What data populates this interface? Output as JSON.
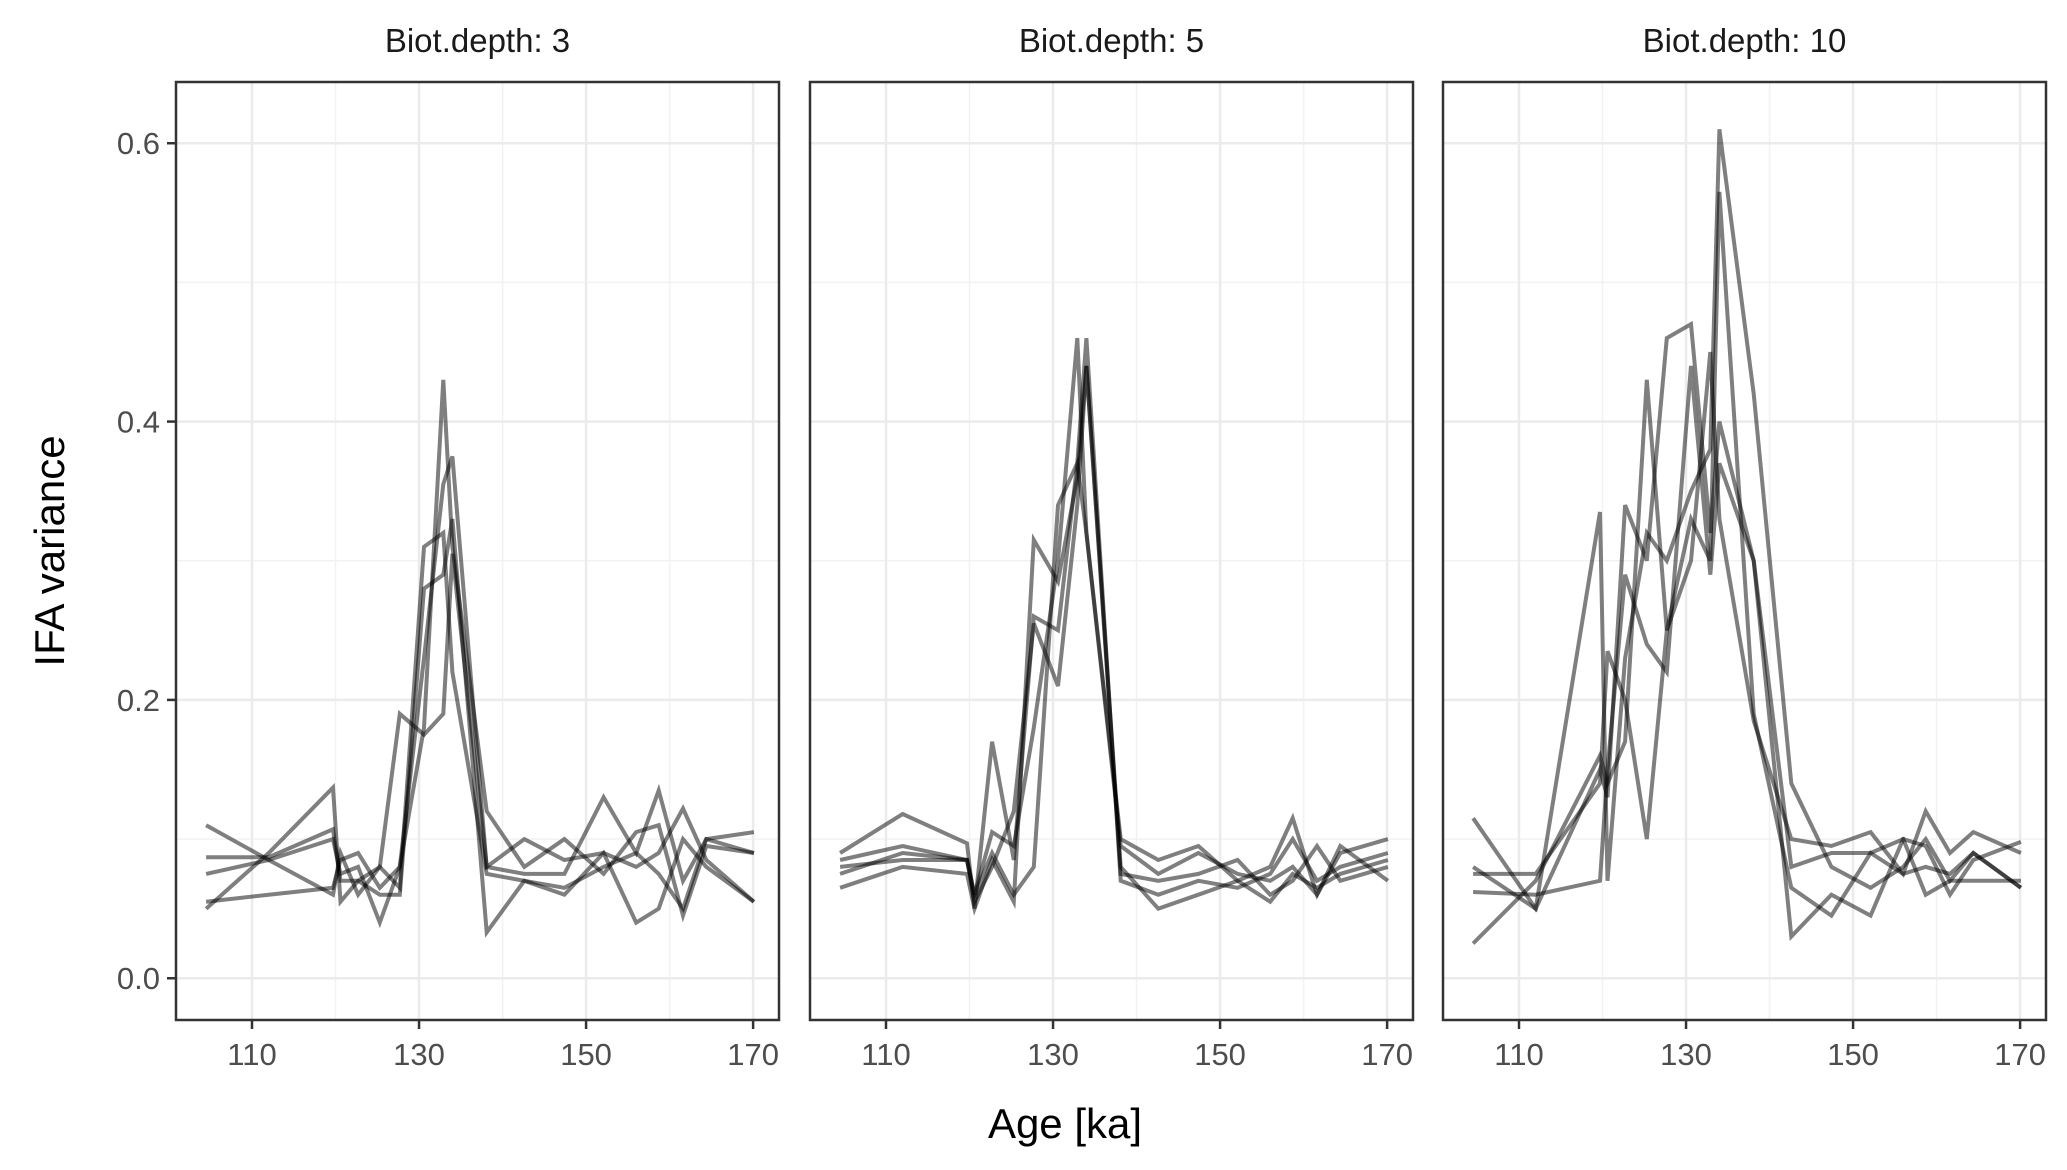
{
  "chart_data": {
    "type": "line",
    "layout": "facets-1x3",
    "xlabel": "Age [ka]",
    "ylabel": "IFA variance",
    "xlim": [
      100.9,
      173.1
    ],
    "ylim": [
      -0.03,
      0.644
    ],
    "x_ticks": [
      110,
      130,
      150,
      170
    ],
    "x_tick_labels": [
      "110",
      "130",
      "150",
      "170"
    ],
    "y_ticks": [
      0.0,
      0.2,
      0.4,
      0.6
    ],
    "y_tick_labels": [
      "0.0",
      "0.2",
      "0.4",
      "0.6"
    ],
    "grid": true,
    "line_color": "#000000",
    "line_opacity": 0.5,
    "x": [
      104.5,
      112,
      119.7,
      120.6,
      122.7,
      125.3,
      127.7,
      130.6,
      132.9,
      134,
      138.1,
      142.6,
      147.4,
      152.1,
      156,
      158.7,
      161.6,
      164.4,
      170.1
    ],
    "panels": [
      {
        "title": "Biot.depth: 3",
        "series": [
          {
            "values": [
              0.11,
              0.085,
              0.06,
              0.09,
              0.06,
              0.08,
              0.065,
              0.31,
              0.32,
              0.22,
              0.075,
              0.07,
              0.065,
              0.08,
              0.09,
              0.075,
              0.05,
              0.1,
              0.09
            ]
          },
          {
            "values": [
              0.055,
              0.06,
              0.065,
              0.085,
              0.09,
              0.065,
              0.08,
              0.18,
              0.43,
              0.31,
              0.12,
              0.08,
              0.1,
              0.075,
              0.105,
              0.11,
              0.045,
              0.095,
              0.09
            ]
          },
          {
            "values": [
              0.05,
              0.09,
              0.137,
              0.055,
              0.07,
              0.08,
              0.19,
              0.175,
              0.19,
              0.305,
              0.08,
              0.1,
              0.085,
              0.09,
              0.08,
              0.09,
              0.122,
              0.085,
              0.055
            ]
          },
          {
            "values": [
              0.075,
              0.085,
              0.1,
              0.075,
              0.08,
              0.04,
              0.08,
              0.23,
              0.355,
              0.375,
              0.08,
              0.075,
              0.075,
              0.13,
              0.09,
              0.135,
              0.07,
              0.1,
              0.105
            ]
          },
          {
            "values": [
              0.087,
              0.087,
              0.107,
              0.07,
              0.07,
              0.06,
              0.06,
              0.28,
              0.29,
              0.33,
              0.033,
              0.07,
              0.06,
              0.09,
              0.04,
              0.05,
              0.1,
              0.08,
              0.055
            ]
          }
        ]
      },
      {
        "title": "Biot.depth: 5",
        "series": [
          {
            "values": [
              0.085,
              0.095,
              0.085,
              0.06,
              0.105,
              0.095,
              0.18,
              0.3,
              0.46,
              0.32,
              0.1,
              0.085,
              0.095,
              0.07,
              0.08,
              0.115,
              0.06,
              0.09,
              0.1
            ]
          },
          {
            "values": [
              0.09,
              0.118,
              0.097,
              0.05,
              0.17,
              0.085,
              0.26,
              0.25,
              0.37,
              0.46,
              0.07,
              0.06,
              0.07,
              0.065,
              0.075,
              0.1,
              0.07,
              0.08,
              0.09
            ]
          },
          {
            "values": [
              0.075,
              0.09,
              0.085,
              0.055,
              0.08,
              0.12,
              0.255,
              0.21,
              0.34,
              0.44,
              0.075,
              0.07,
              0.075,
              0.085,
              0.06,
              0.07,
              0.095,
              0.07,
              0.08
            ]
          },
          {
            "values": [
              0.065,
              0.08,
              0.075,
              0.05,
              0.085,
              0.055,
              0.315,
              0.285,
              0.36,
              0.44,
              0.08,
              0.05,
              0.06,
              0.07,
              0.055,
              0.075,
              0.065,
              0.075,
              0.085
            ]
          },
          {
            "values": [
              0.08,
              0.085,
              0.085,
              0.06,
              0.09,
              0.06,
              0.08,
              0.34,
              0.37,
              0.32,
              0.095,
              0.075,
              0.09,
              0.075,
              0.07,
              0.08,
              0.06,
              0.095,
              0.07
            ]
          }
        ]
      },
      {
        "title": "Biot.depth: 10",
        "series": [
          {
            "values": [
              0.08,
              0.05,
              0.335,
              0.07,
              0.23,
              0.32,
              0.3,
              0.35,
              0.38,
              0.61,
              0.42,
              0.14,
              0.08,
              0.065,
              0.08,
              0.1,
              0.07,
              0.09,
              0.065
            ]
          },
          {
            "values": [
              0.075,
              0.075,
              0.14,
              0.235,
              0.2,
              0.1,
              0.25,
              0.33,
              0.3,
              0.565,
              0.19,
              0.065,
              0.045,
              0.09,
              0.075,
              0.08,
              0.075,
              0.09,
              0.065
            ]
          },
          {
            "values": [
              0.115,
              0.05,
              0.15,
              0.13,
              0.34,
              0.3,
              0.46,
              0.47,
              0.32,
              0.4,
              0.3,
              0.08,
              0.09,
              0.09,
              0.1,
              0.06,
              0.07,
              0.07,
              0.07
            ]
          },
          {
            "values": [
              0.025,
              0.07,
              0.16,
              0.14,
              0.17,
              0.43,
              0.25,
              0.3,
              0.45,
              0.33,
              0.185,
              0.1,
              0.095,
              0.105,
              0.075,
              0.12,
              0.09,
              0.105,
              0.09
            ]
          },
          {
            "values": [
              0.062,
              0.06,
              0.07,
              0.15,
              0.29,
              0.24,
              0.22,
              0.44,
              0.29,
              0.37,
              0.3,
              0.03,
              0.06,
              0.045,
              0.1,
              0.095,
              0.06,
              0.085,
              0.098
            ]
          }
        ]
      }
    ]
  }
}
